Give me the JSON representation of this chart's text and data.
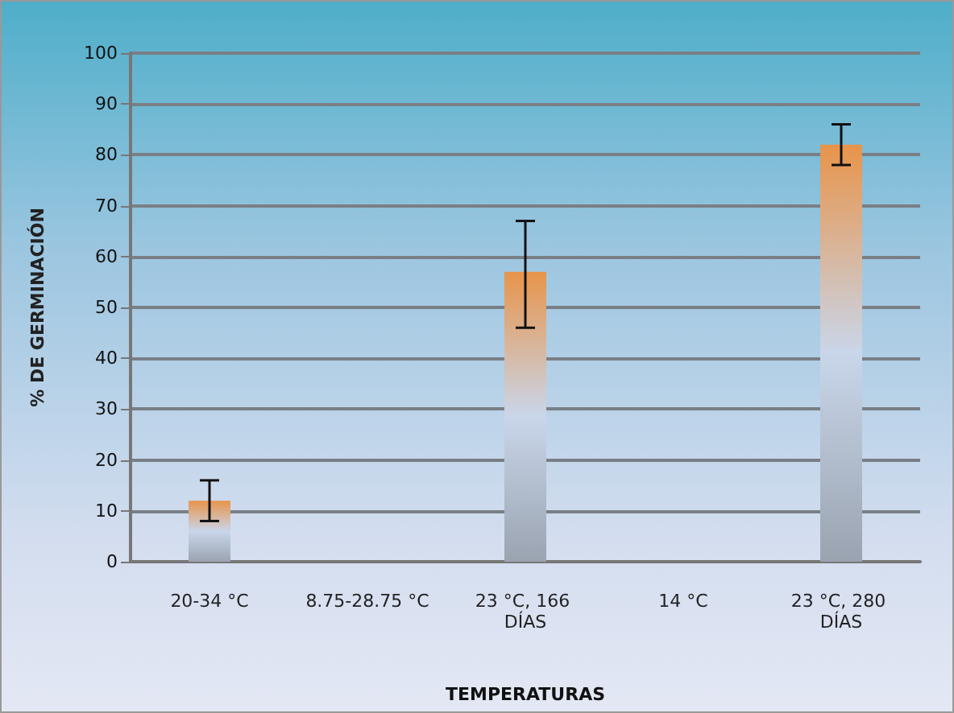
{
  "chart_data": {
    "type": "bar",
    "xlabel": "TEMPERATURAS",
    "ylabel": "% DE GERMINACIÓN",
    "categories": [
      "20-34 °C",
      "8.75-28.75 °C",
      "23 °C, 166 DÍAS",
      "14 °C",
      "23 °C, 280 DÍAS"
    ],
    "values": [
      12,
      0,
      57,
      0,
      82
    ],
    "errors": [
      [
        8,
        16
      ],
      null,
      [
        46,
        67
      ],
      null,
      [
        78,
        86
      ]
    ],
    "color": "#e8944a",
    "ylim": [
      0,
      100
    ],
    "yticks": [
      0,
      10,
      20,
      30,
      40,
      50,
      60,
      70,
      80,
      90,
      100
    ],
    "grid": "y"
  }
}
